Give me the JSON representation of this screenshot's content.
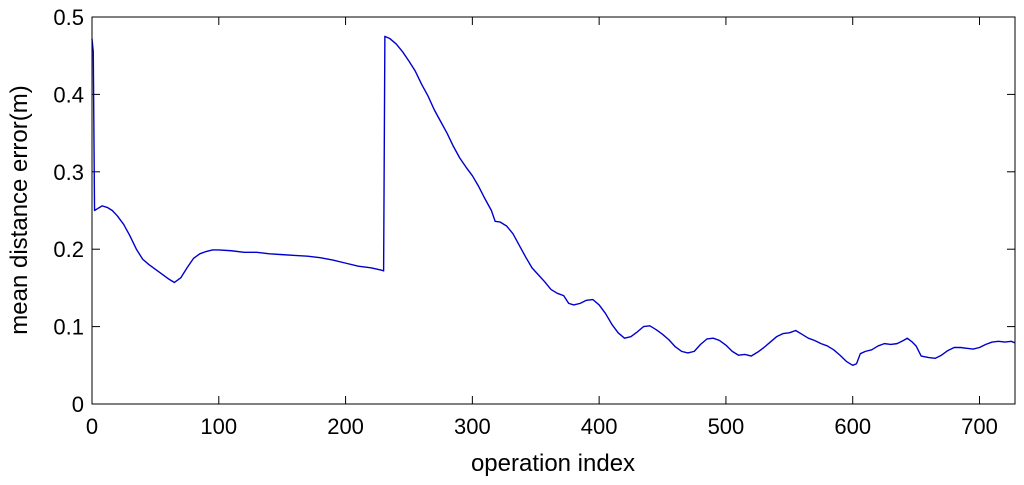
{
  "chart_data": {
    "type": "line",
    "title": "",
    "xlabel": "operation index",
    "ylabel": "mean distance error(m)",
    "xlim": [
      0,
      728
    ],
    "ylim": [
      0,
      0.5
    ],
    "grid": false,
    "x_ticks": [
      0,
      100,
      200,
      300,
      400,
      500,
      600,
      700
    ],
    "x_tick_labels": [
      "0",
      "100",
      "200",
      "300",
      "400",
      "500",
      "600",
      "700"
    ],
    "y_ticks": [
      0,
      0.1,
      0.2,
      0.3,
      0.4,
      0.5
    ],
    "y_tick_labels": [
      "0",
      "0.1",
      "0.2",
      "0.3",
      "0.4",
      "0.5"
    ],
    "line_color": "#0000cc",
    "series": [
      {
        "points": [
          [
            0,
            0.472
          ],
          [
            1,
            0.455
          ],
          [
            2,
            0.25
          ],
          [
            4,
            0.252
          ],
          [
            8,
            0.256
          ],
          [
            12,
            0.254
          ],
          [
            16,
            0.25
          ],
          [
            20,
            0.243
          ],
          [
            25,
            0.232
          ],
          [
            30,
            0.217
          ],
          [
            35,
            0.2
          ],
          [
            40,
            0.187
          ],
          [
            45,
            0.18
          ],
          [
            50,
            0.174
          ],
          [
            55,
            0.168
          ],
          [
            60,
            0.162
          ],
          [
            65,
            0.157
          ],
          [
            70,
            0.163
          ],
          [
            75,
            0.176
          ],
          [
            80,
            0.188
          ],
          [
            85,
            0.194
          ],
          [
            90,
            0.197
          ],
          [
            95,
            0.199
          ],
          [
            100,
            0.199
          ],
          [
            110,
            0.198
          ],
          [
            120,
            0.196
          ],
          [
            130,
            0.196
          ],
          [
            140,
            0.194
          ],
          [
            150,
            0.193
          ],
          [
            160,
            0.192
          ],
          [
            170,
            0.191
          ],
          [
            180,
            0.189
          ],
          [
            190,
            0.186
          ],
          [
            200,
            0.182
          ],
          [
            210,
            0.178
          ],
          [
            220,
            0.176
          ],
          [
            228,
            0.173
          ],
          [
            230,
            0.172
          ],
          [
            231,
            0.475
          ],
          [
            235,
            0.472
          ],
          [
            240,
            0.465
          ],
          [
            245,
            0.455
          ],
          [
            250,
            0.443
          ],
          [
            255,
            0.43
          ],
          [
            260,
            0.413
          ],
          [
            265,
            0.398
          ],
          [
            270,
            0.38
          ],
          [
            275,
            0.365
          ],
          [
            280,
            0.35
          ],
          [
            285,
            0.333
          ],
          [
            290,
            0.318
          ],
          [
            295,
            0.306
          ],
          [
            300,
            0.295
          ],
          [
            305,
            0.281
          ],
          [
            310,
            0.265
          ],
          [
            315,
            0.25
          ],
          [
            318,
            0.236
          ],
          [
            322,
            0.235
          ],
          [
            327,
            0.23
          ],
          [
            332,
            0.22
          ],
          [
            337,
            0.205
          ],
          [
            342,
            0.19
          ],
          [
            347,
            0.176
          ],
          [
            352,
            0.167
          ],
          [
            357,
            0.158
          ],
          [
            362,
            0.148
          ],
          [
            367,
            0.143
          ],
          [
            372,
            0.14
          ],
          [
            376,
            0.13
          ],
          [
            380,
            0.128
          ],
          [
            385,
            0.13
          ],
          [
            390,
            0.134
          ],
          [
            395,
            0.135
          ],
          [
            400,
            0.128
          ],
          [
            405,
            0.117
          ],
          [
            410,
            0.103
          ],
          [
            415,
            0.092
          ],
          [
            420,
            0.085
          ],
          [
            425,
            0.087
          ],
          [
            430,
            0.093
          ],
          [
            435,
            0.1
          ],
          [
            440,
            0.101
          ],
          [
            445,
            0.096
          ],
          [
            450,
            0.09
          ],
          [
            455,
            0.083
          ],
          [
            460,
            0.074
          ],
          [
            465,
            0.068
          ],
          [
            470,
            0.066
          ],
          [
            475,
            0.068
          ],
          [
            480,
            0.077
          ],
          [
            485,
            0.084
          ],
          [
            490,
            0.085
          ],
          [
            495,
            0.082
          ],
          [
            500,
            0.076
          ],
          [
            505,
            0.068
          ],
          [
            510,
            0.063
          ],
          [
            515,
            0.064
          ],
          [
            520,
            0.062
          ],
          [
            525,
            0.067
          ],
          [
            530,
            0.073
          ],
          [
            535,
            0.08
          ],
          [
            540,
            0.087
          ],
          [
            545,
            0.091
          ],
          [
            550,
            0.092
          ],
          [
            555,
            0.095
          ],
          [
            560,
            0.09
          ],
          [
            565,
            0.085
          ],
          [
            570,
            0.082
          ],
          [
            575,
            0.078
          ],
          [
            580,
            0.075
          ],
          [
            585,
            0.07
          ],
          [
            590,
            0.063
          ],
          [
            595,
            0.055
          ],
          [
            600,
            0.05
          ],
          [
            603,
            0.052
          ],
          [
            606,
            0.065
          ],
          [
            610,
            0.068
          ],
          [
            615,
            0.07
          ],
          [
            620,
            0.075
          ],
          [
            625,
            0.078
          ],
          [
            630,
            0.077
          ],
          [
            635,
            0.078
          ],
          [
            640,
            0.082
          ],
          [
            643,
            0.085
          ],
          [
            647,
            0.08
          ],
          [
            650,
            0.075
          ],
          [
            654,
            0.062
          ],
          [
            660,
            0.06
          ],
          [
            665,
            0.059
          ],
          [
            670,
            0.063
          ],
          [
            675,
            0.069
          ],
          [
            680,
            0.073
          ],
          [
            685,
            0.073
          ],
          [
            690,
            0.072
          ],
          [
            695,
            0.071
          ],
          [
            700,
            0.073
          ],
          [
            705,
            0.077
          ],
          [
            710,
            0.08
          ],
          [
            715,
            0.081
          ],
          [
            720,
            0.08
          ],
          [
            725,
            0.081
          ],
          [
            728,
            0.079
          ]
        ]
      }
    ]
  }
}
